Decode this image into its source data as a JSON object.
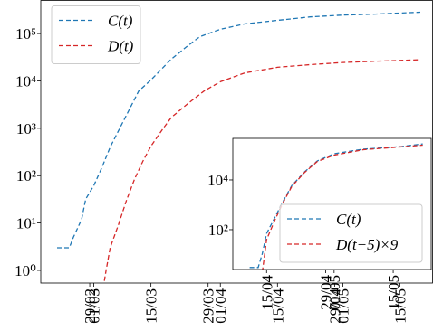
{
  "chart_data": [
    {
      "type": "line",
      "log_y": true,
      "legend": "upper left",
      "xlim": [
        "17/02",
        "23/05"
      ],
      "ylim": [
        0.54,
        500000
      ],
      "xticks": [
        "29/02",
        "01/03",
        "15/03",
        "29/03",
        "01/04",
        "15/04",
        "29/04",
        "01/05",
        "15/05"
      ],
      "yticks": [
        {
          "value": 1,
          "label": "10⁰"
        },
        {
          "value": 10,
          "label": "10¹"
        },
        {
          "value": 100,
          "label": "10²"
        },
        {
          "value": 1000,
          "label": "10³"
        },
        {
          "value": 10000,
          "label": "10⁴"
        },
        {
          "value": 100000,
          "label": "10⁵"
        }
      ],
      "series": [
        {
          "name": "C(t)",
          "color": "#1f77b4",
          "x": [
            "21/02",
            "24/02",
            "25/02",
            "27/02",
            "28/02",
            "01/03",
            "03/03",
            "05/03",
            "09/03",
            "12/03",
            "15/03",
            "20/03",
            "24/03",
            "27/03",
            "01/04",
            "07/04",
            "15/04",
            "23/04",
            "01/05",
            "09/05",
            "20/05"
          ],
          "values": [
            3,
            3,
            5,
            12,
            32,
            62,
            150,
            400,
            1900,
            6100,
            10500,
            29000,
            55000,
            86000,
            123000,
            160000,
            190000,
            225000,
            245000,
            257000,
            282000
          ]
        },
        {
          "name": "D(t)",
          "color": "#d62728",
          "x": [
            "03/03",
            "04/03",
            "05/03",
            "07/03",
            "09/03",
            "11/03",
            "13/03",
            "15/03",
            "18/03",
            "20/03",
            "24/03",
            "28/03",
            "01/04",
            "07/04",
            "15/04",
            "23/04",
            "01/05",
            "09/05",
            "20/05"
          ],
          "values": [
            0.3,
            1,
            3,
            9,
            30,
            85,
            200,
            420,
            1000,
            1700,
            3300,
            6100,
            9600,
            14800,
            19400,
            22000,
            24500,
            26000,
            28000
          ]
        }
      ]
    },
    {
      "type": "line",
      "log_y": true,
      "legend": "lower right",
      "xlim": [
        "07/04",
        "24/05"
      ],
      "ylim": [
        2.5,
        470000
      ],
      "xticks": [
        "15/04",
        "29/04",
        "01/05",
        "15/05"
      ],
      "yticks": [
        {
          "value": 100,
          "label": "10²"
        },
        {
          "value": 10000,
          "label": "10⁴"
        }
      ],
      "series": [
        {
          "name": "C(t)",
          "color": "#1f77b4",
          "x": [
            "11/04",
            "13/04",
            "14/04",
            "15/04",
            "17/04",
            "19/04",
            "21/04",
            "24/04",
            "27/04",
            "01/05",
            "08/05",
            "17/05",
            "22/05"
          ],
          "values": [
            3,
            3,
            11,
            70,
            320,
            1450,
            6000,
            21000,
            58000,
            113000,
            173000,
            222000,
            282000
          ]
        },
        {
          "name": "D(t−5)×9",
          "color": "#d62728",
          "x": [
            "14/04",
            "15/04",
            "17/04",
            "19/04",
            "21/04",
            "24/04",
            "27/04",
            "01/05",
            "08/05",
            "17/05",
            "22/05"
          ],
          "values": [
            2,
            40,
            250,
            1300,
            5500,
            20000,
            55000,
            100000,
            165000,
            215000,
            250000
          ]
        }
      ]
    }
  ]
}
